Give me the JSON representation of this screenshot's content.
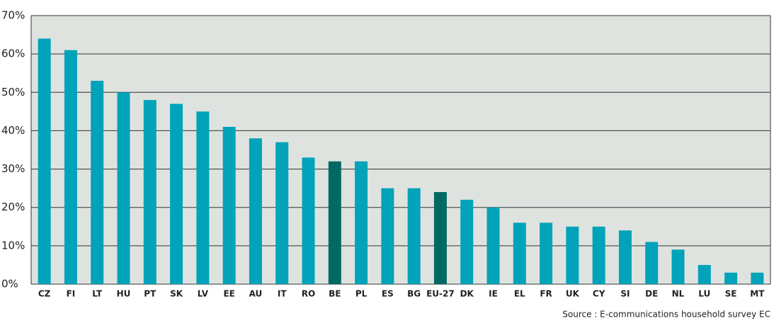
{
  "chart_data": {
    "type": "bar",
    "categories": [
      "CZ",
      "FI",
      "LT",
      "HU",
      "PT",
      "SK",
      "LV",
      "EE",
      "AU",
      "IT",
      "RO",
      "BE",
      "PL",
      "ES",
      "BG",
      "EU-27",
      "DK",
      "IE",
      "EL",
      "FR",
      "UK",
      "CY",
      "SI",
      "DE",
      "NL",
      "LU",
      "SE",
      "MT"
    ],
    "values": [
      64,
      61,
      53,
      50,
      48,
      47,
      45,
      41,
      38,
      37,
      33,
      32,
      32,
      25,
      25,
      24,
      22,
      20,
      16,
      16,
      15,
      15,
      14,
      11,
      9,
      5,
      3,
      3
    ],
    "colors": [
      "#00a3b9",
      "#00a3b9",
      "#00a3b9",
      "#00a3b9",
      "#00a3b9",
      "#00a3b9",
      "#00a3b9",
      "#00a3b9",
      "#00a3b9",
      "#00a3b9",
      "#00a3b9",
      "#006963",
      "#00a3b9",
      "#00a3b9",
      "#00a3b9",
      "#006963",
      "#00a3b9",
      "#00a3b9",
      "#00a3b9",
      "#00a3b9",
      "#00a3b9",
      "#00a3b9",
      "#00a3b9",
      "#00a3b9",
      "#00a3b9",
      "#00a3b9",
      "#00a3b9",
      "#00a3b9"
    ],
    "ylim": [
      0,
      70
    ],
    "yticks": [
      {
        "value": 0,
        "label": "0%"
      },
      {
        "value": 10,
        "label": "10%"
      },
      {
        "value": 20,
        "label": "20%"
      },
      {
        "value": 30,
        "label": "30%"
      },
      {
        "value": 40,
        "label": "40%"
      },
      {
        "value": 50,
        "label": "50%"
      },
      {
        "value": 60,
        "label": "60%"
      },
      {
        "value": 70,
        "label": "70%"
      }
    ],
    "grid": true,
    "source": "Source : E-communications household survey EC"
  }
}
